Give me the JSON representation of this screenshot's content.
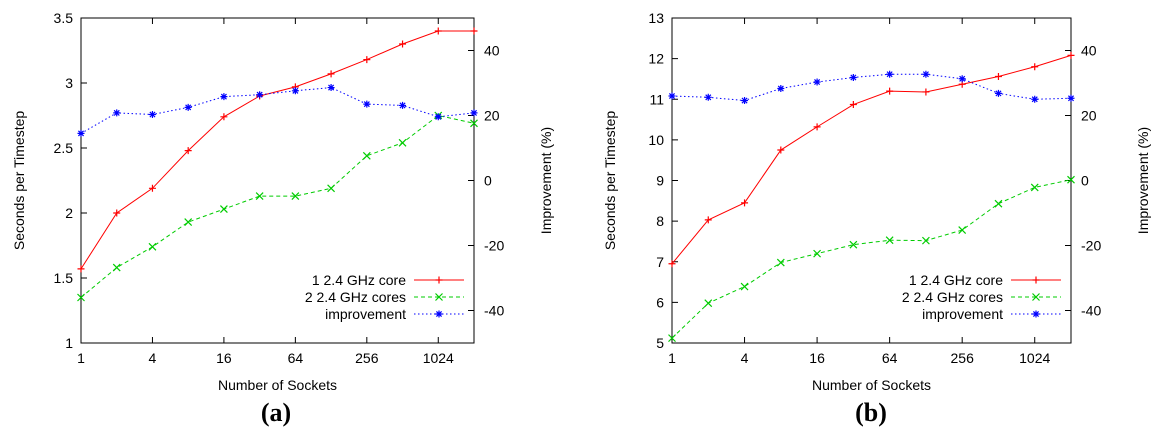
{
  "chart_data": [
    {
      "type": "line",
      "panel_label": "(a)",
      "xlabel": "Number of Sockets",
      "ylabel": "Seconds per Timestep",
      "y2label": "Improvement (%)",
      "x_scale": "log2",
      "xlim": [
        1,
        2048
      ],
      "xticks": [
        1,
        4,
        16,
        64,
        256,
        1024
      ],
      "xtick_labels": [
        "1",
        "4",
        "16",
        "64",
        "256",
        "1024"
      ],
      "ylim": [
        1,
        3.5
      ],
      "yticks": [
        1,
        1.5,
        2,
        2.5,
        3,
        3.5
      ],
      "ytick_labels": [
        "1",
        "1.5",
        "2",
        "2.5",
        "3",
        "3.5"
      ],
      "y2lim": [
        -50,
        50
      ],
      "y2ticks": [
        -40,
        -20,
        0,
        20,
        40
      ],
      "y2tick_labels": [
        "-40",
        "-20",
        "0",
        "20",
        "40"
      ],
      "legend_position": "bottom-right",
      "grid": false,
      "x": [
        1,
        2,
        4,
        8,
        16,
        32,
        64,
        128,
        256,
        512,
        1024,
        2048
      ],
      "series": [
        {
          "name": "1 2.4 GHz core",
          "axis": "left",
          "color": "#ff0000",
          "dash": "solid",
          "marker": "plus",
          "values": [
            1.57,
            2.0,
            2.19,
            2.48,
            2.74,
            2.9,
            2.97,
            3.07,
            3.18,
            3.3,
            3.4,
            3.4
          ]
        },
        {
          "name": "2 2.4 GHz cores",
          "axis": "left",
          "color": "#00cc00",
          "dash": "dashed",
          "marker": "x",
          "values": [
            1.35,
            1.58,
            1.74,
            1.93,
            2.03,
            2.13,
            2.13,
            2.19,
            2.44,
            2.54,
            2.75,
            2.69
          ]
        },
        {
          "name": "improvement",
          "axis": "right",
          "color": "#0000ff",
          "dash": "dotted",
          "marker": "star",
          "values": [
            14.5,
            20.8,
            20.3,
            22.5,
            25.8,
            26.4,
            27.6,
            28.6,
            23.5,
            23.1,
            19.6,
            20.8
          ]
        }
      ]
    },
    {
      "type": "line",
      "panel_label": "(b)",
      "xlabel": "Number of Sockets",
      "ylabel": "Seconds per Timestep",
      "y2label": "Improvement (%)",
      "x_scale": "log2",
      "xlim": [
        1,
        2048
      ],
      "xticks": [
        1,
        4,
        16,
        64,
        256,
        1024
      ],
      "xtick_labels": [
        "1",
        "4",
        "16",
        "64",
        "256",
        "1024"
      ],
      "ylim": [
        5,
        13
      ],
      "yticks": [
        5,
        6,
        7,
        8,
        9,
        10,
        11,
        12,
        13
      ],
      "ytick_labels": [
        "5",
        "6",
        "7",
        "8",
        "9",
        "10",
        "11",
        "12",
        "13"
      ],
      "y2lim": [
        -50,
        50
      ],
      "y2ticks": [
        -40,
        -20,
        0,
        20,
        40
      ],
      "y2tick_labels": [
        "-40",
        "-20",
        "0",
        "20",
        "40"
      ],
      "legend_position": "bottom-right",
      "grid": false,
      "x": [
        1,
        2,
        4,
        8,
        16,
        32,
        64,
        128,
        256,
        512,
        1024,
        2048
      ],
      "series": [
        {
          "name": "1 2.4 GHz core",
          "axis": "left",
          "color": "#ff0000",
          "dash": "solid",
          "marker": "plus",
          "values": [
            6.95,
            8.03,
            8.45,
            9.75,
            10.32,
            10.87,
            11.2,
            11.18,
            11.37,
            11.56,
            11.8,
            12.08
          ]
        },
        {
          "name": "2 2.4 GHz cores",
          "axis": "left",
          "color": "#00cc00",
          "dash": "dashed",
          "marker": "x",
          "values": [
            5.12,
            5.98,
            6.39,
            6.98,
            7.2,
            7.42,
            7.53,
            7.52,
            7.78,
            8.43,
            8.83,
            9.02
          ]
        },
        {
          "name": "improvement",
          "axis": "right",
          "color": "#0000ff",
          "dash": "dotted",
          "marker": "star",
          "values": [
            26.0,
            25.6,
            24.6,
            28.3,
            30.3,
            31.7,
            32.7,
            32.7,
            31.3,
            26.8,
            25.0,
            25.3
          ]
        }
      ]
    }
  ]
}
